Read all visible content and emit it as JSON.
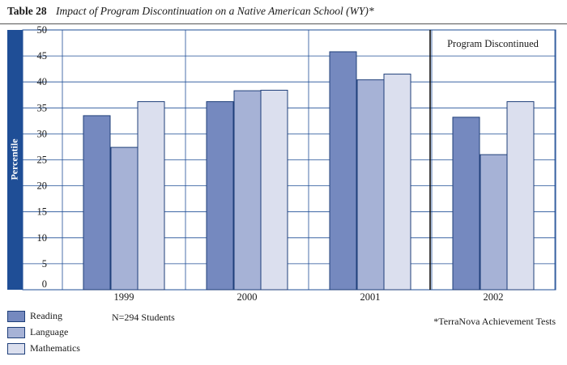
{
  "title": {
    "label": "Table 28",
    "text": "Impact of Program Discontinuation on a Native American School (WY)*"
  },
  "chart_data": {
    "type": "bar",
    "categories": [
      "1999",
      "2000",
      "2001",
      "2002"
    ],
    "series": [
      {
        "name": "Reading",
        "values": [
          33.5,
          36.2,
          45.8,
          33.2
        ],
        "color": "#7589bf"
      },
      {
        "name": "Language",
        "values": [
          27.4,
          38.3,
          40.4,
          26.0
        ],
        "color": "#a6b2d6"
      },
      {
        "name": "Mathematics",
        "values": [
          36.2,
          38.4,
          41.5,
          36.2
        ],
        "color": "#dbdfee"
      }
    ],
    "ylabel": "Percentile",
    "xlabel": "",
    "ylim": [
      0,
      50
    ],
    "yticks": [
      0,
      5,
      10,
      15,
      20,
      25,
      30,
      35,
      40,
      45,
      50
    ],
    "grid": true,
    "annotation": "Program Discontinued",
    "annotation_after_category": "2001",
    "legend_position": "bottom-left"
  },
  "notes": {
    "sample": "N=294 Students",
    "footnote": "*TerraNova Achievement Tests"
  },
  "colors": {
    "accent": "#1f4e96",
    "bar_stroke": "#1f3f7a"
  }
}
